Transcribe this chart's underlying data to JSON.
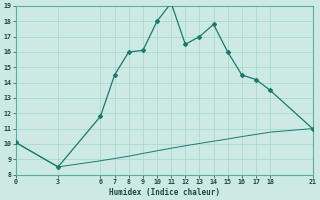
{
  "xlabel": "Humidex (Indice chaleur)",
  "ylabel": "",
  "bg_color": "#cce9e4",
  "grid_color": "#b0d8d2",
  "line_color": "#1a7a6e",
  "upper_x": [
    0,
    3,
    6,
    7,
    8,
    9,
    10,
    11,
    12,
    13,
    14,
    15,
    16,
    17,
    18,
    21
  ],
  "upper_y": [
    10.1,
    8.5,
    11.8,
    14.5,
    16.0,
    16.1,
    18.0,
    19.2,
    16.5,
    17.0,
    17.8,
    16.0,
    14.5,
    14.2,
    13.5,
    11.0
  ],
  "lower_x": [
    0,
    3,
    6,
    7,
    8,
    9,
    10,
    11,
    12,
    13,
    14,
    15,
    16,
    17,
    18,
    21
  ],
  "lower_y": [
    10.1,
    8.5,
    8.9,
    9.05,
    9.2,
    9.38,
    9.55,
    9.72,
    9.88,
    10.03,
    10.18,
    10.32,
    10.48,
    10.62,
    10.77,
    11.0
  ],
  "xlim": [
    0,
    21
  ],
  "ylim": [
    8,
    19
  ],
  "xticks": [
    0,
    3,
    6,
    7,
    8,
    9,
    10,
    11,
    12,
    13,
    14,
    15,
    16,
    17,
    18,
    21
  ],
  "yticks": [
    8,
    9,
    10,
    11,
    12,
    13,
    14,
    15,
    16,
    17,
    18,
    19
  ]
}
